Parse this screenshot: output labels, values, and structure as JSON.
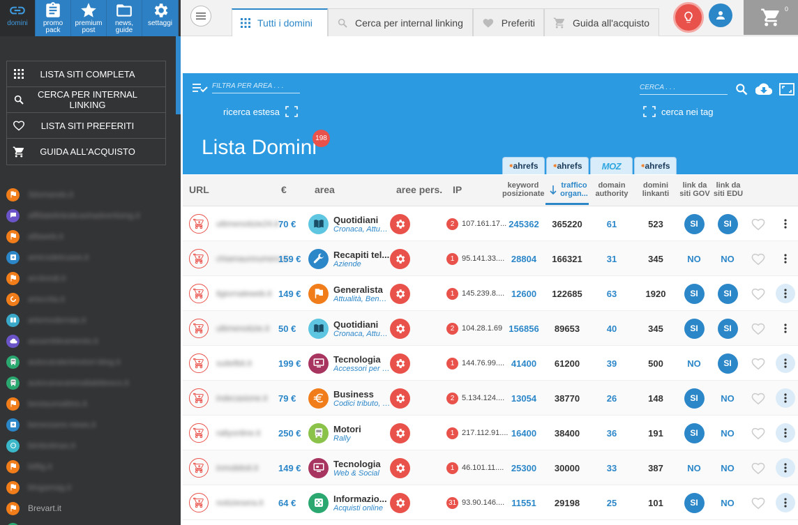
{
  "sidebar": {
    "top_icons": [
      {
        "label": "domini",
        "icon": "link-icon"
      },
      {
        "label": "promo\npack",
        "icon": "clipboard-icon"
      },
      {
        "label": "premium\npost",
        "icon": "star-icon"
      },
      {
        "label": "news,\nguide",
        "icon": "folder-icon"
      },
      {
        "label": "settaggi",
        "icon": "gear-icon"
      }
    ],
    "menu": [
      {
        "label": "LISTA SITI COMPLETA",
        "icon": "grid-icon"
      },
      {
        "label": "CERCA PER INTERNAL LINKING",
        "icon": "search-icon"
      },
      {
        "label": "LISTA SITI PREFERITI",
        "icon": "heart-icon"
      },
      {
        "label": "GUIDA ALL'ACQUISTO",
        "icon": "cart-icon"
      }
    ],
    "sites": [
      {
        "name": "3dsmando.it",
        "color": "#f07d1a",
        "icon": "flag-icon"
      },
      {
        "name": "affiliatelinksitcashadvertising.it",
        "color": "#6a54c7",
        "icon": "chat-icon"
      },
      {
        "name": "alfaweb.it",
        "color": "#f07d1a",
        "icon": "flag-icon"
      },
      {
        "name": "amicodelcuore.it",
        "color": "#2c87c9",
        "icon": "plus-box-icon"
      },
      {
        "name": "arcilondi.it",
        "color": "#f07d1a",
        "icon": "flag-icon"
      },
      {
        "name": "artecrita.it",
        "color": "#f07d1a",
        "icon": "circle-arrow-icon"
      },
      {
        "name": "artemodernas.it",
        "color": "#3aa8c9",
        "icon": "book-icon"
      },
      {
        "name": "assambleamento.it",
        "color": "#6a54c7",
        "icon": "cloud-icon"
      },
      {
        "name": "autocaraterimotori-blog.it",
        "color": "#2aa870",
        "icon": "bus-icon"
      },
      {
        "name": "autocaravanmallabitiesco.it",
        "color": "#2aa870",
        "icon": "bus-icon"
      },
      {
        "name": "bestaumattino.it",
        "color": "#f07d1a",
        "icon": "flag-icon"
      },
      {
        "name": "benessere-news.it",
        "color": "#2c87c9",
        "icon": "plus-box-icon"
      },
      {
        "name": "bimbotinao.it",
        "color": "#3ab8c9",
        "icon": "baby-icon"
      },
      {
        "name": "bitfig.it",
        "color": "#f07d1a",
        "icon": "flag-icon"
      },
      {
        "name": "blogamag.it",
        "color": "#f07d1a",
        "icon": "flag-icon"
      },
      {
        "name": "Brevart.it",
        "color": "#f07d1a",
        "icon": "flag-icon"
      },
      {
        "name": "",
        "color": "#2aa870",
        "icon": "circle-icon"
      }
    ]
  },
  "topbar": {
    "tabs": [
      {
        "label": "Tutti i domini",
        "icon": "grid-icon",
        "active": true
      },
      {
        "label": "Cerca per internal linking",
        "icon": "search-icon",
        "active": false
      },
      {
        "label": "Preferiti",
        "icon": "heart-icon",
        "active": false
      },
      {
        "label": "Guida all'acquisto",
        "icon": "cart-icon",
        "active": false
      }
    ],
    "cart_count": "0"
  },
  "header": {
    "filter_placeholder": "FILTRA PER AREA . . .",
    "ricerca_estesa": "ricerca estesa",
    "search_placeholder": "CERCA . . .",
    "cerca_nei_tag": "cerca nei tag",
    "title": "Lista Domini",
    "count": "198",
    "sources": [
      "ahrefs",
      "ahrefs",
      "MOZ",
      "ahrefs"
    ]
  },
  "columns": {
    "url": "URL",
    "price": "€",
    "area": "area",
    "aree_pers": "aree pers.",
    "ip": "IP",
    "keyword": [
      "keyword",
      "posizionate"
    ],
    "traffico": [
      "traffico",
      "organ..."
    ],
    "domain_authority": [
      "domain",
      "authority"
    ],
    "domini_linkanti": [
      "domini",
      "linkanti"
    ],
    "gov": [
      "link da",
      "siti GOV"
    ],
    "edu": [
      "link da",
      "siti EDU"
    ]
  },
  "colors": {
    "accent": "#2c87c9",
    "header_blue": "#2c9ae0",
    "red": "#e9524b",
    "sidebar": "#333436"
  },
  "rows": [
    {
      "url": "ultimenotizie24.it",
      "price": "70 €",
      "area": "Quotidiani",
      "sub": "Cronaca, Attualità",
      "icon_color": "#5ec6e0",
      "icon": "newspaper-icon",
      "ipn": "2",
      "ip": "107.161.17...",
      "kw": "245362",
      "traffic": "365220",
      "da": "61",
      "dl": "523",
      "gov": "SI",
      "edu": "SI",
      "hl": false
    },
    {
      "url": "chiamaunnumero.it",
      "price": "159 €",
      "area": "Recapiti tel...",
      "sub": "Aziende",
      "icon_color": "#2c87c9",
      "icon": "wrench-icon",
      "ipn": "1",
      "ip": "95.141.33....",
      "kw": "28804",
      "traffic": "166321",
      "da": "31",
      "dl": "345",
      "gov": "NO",
      "edu": "NO",
      "hl": false
    },
    {
      "url": "ilgiornaleweb.it",
      "price": "149 €",
      "area": "Generalista",
      "sub": "Attualità, Benessere",
      "icon_color": "#f07d1a",
      "icon": "flag-icon",
      "ipn": "1",
      "ip": "145.239.8....",
      "kw": "12600",
      "traffic": "122685",
      "da": "63",
      "dl": "1920",
      "gov": "SI",
      "edu": "SI",
      "hl": true
    },
    {
      "url": "ultimenotizie.it",
      "price": "50 €",
      "area": "Quotidiani",
      "sub": "Cronaca, Attualità",
      "icon_color": "#5ec6e0",
      "icon": "newspaper-icon",
      "ipn": "2",
      "ip": "104.28.1.69",
      "kw": "156856",
      "traffic": "89653",
      "da": "40",
      "dl": "345",
      "gov": "SI",
      "edu": "SI",
      "hl": false
    },
    {
      "url": "suitefbit.it",
      "price": "199 €",
      "area": "Tecnologia",
      "sub": "Accessori per PC",
      "icon_color": "#a8355f",
      "icon": "monitor-icon",
      "ipn": "1",
      "ip": "144.76.99....",
      "kw": "41400",
      "traffic": "61200",
      "da": "39",
      "dl": "500",
      "gov": "NO",
      "edu": "SI",
      "hl": true
    },
    {
      "url": "indecasione.it",
      "price": "79 €",
      "area": "Business",
      "sub": "Codici tributo, Tasse",
      "icon_color": "#f07d1a",
      "icon": "euro-icon",
      "ipn": "2",
      "ip": "5.134.124....",
      "kw": "13054",
      "traffic": "38770",
      "da": "26",
      "dl": "148",
      "gov": "SI",
      "edu": "NO",
      "hl": true
    },
    {
      "url": "rallyonline.it",
      "price": "250 €",
      "area": "Motori",
      "sub": "Rally",
      "icon_color": "#8bc34a",
      "icon": "bus-icon",
      "ipn": "1",
      "ip": "217.112.91....",
      "kw": "16400",
      "traffic": "38400",
      "da": "36",
      "dl": "191",
      "gov": "SI",
      "edu": "NO",
      "hl": true
    },
    {
      "url": "inmobiloit.it",
      "price": "149 €",
      "area": "Tecnologia",
      "sub": "Web & Social",
      "icon_color": "#a8355f",
      "icon": "monitor-icon",
      "ipn": "1",
      "ip": "46.101.11....",
      "kw": "25300",
      "traffic": "30000",
      "da": "33",
      "dl": "387",
      "gov": "NO",
      "edu": "NO",
      "hl": true
    },
    {
      "url": "notiziesera.it",
      "price": "64 €",
      "area": "Informazio...",
      "sub": "Acquisti online",
      "icon_color": "#2aa870",
      "icon": "dice-icon",
      "ipn": "31",
      "ip": "93.90.146....",
      "kw": "11551",
      "traffic": "29198",
      "da": "25",
      "dl": "101",
      "gov": "SI",
      "edu": "NO",
      "hl": true
    }
  ]
}
